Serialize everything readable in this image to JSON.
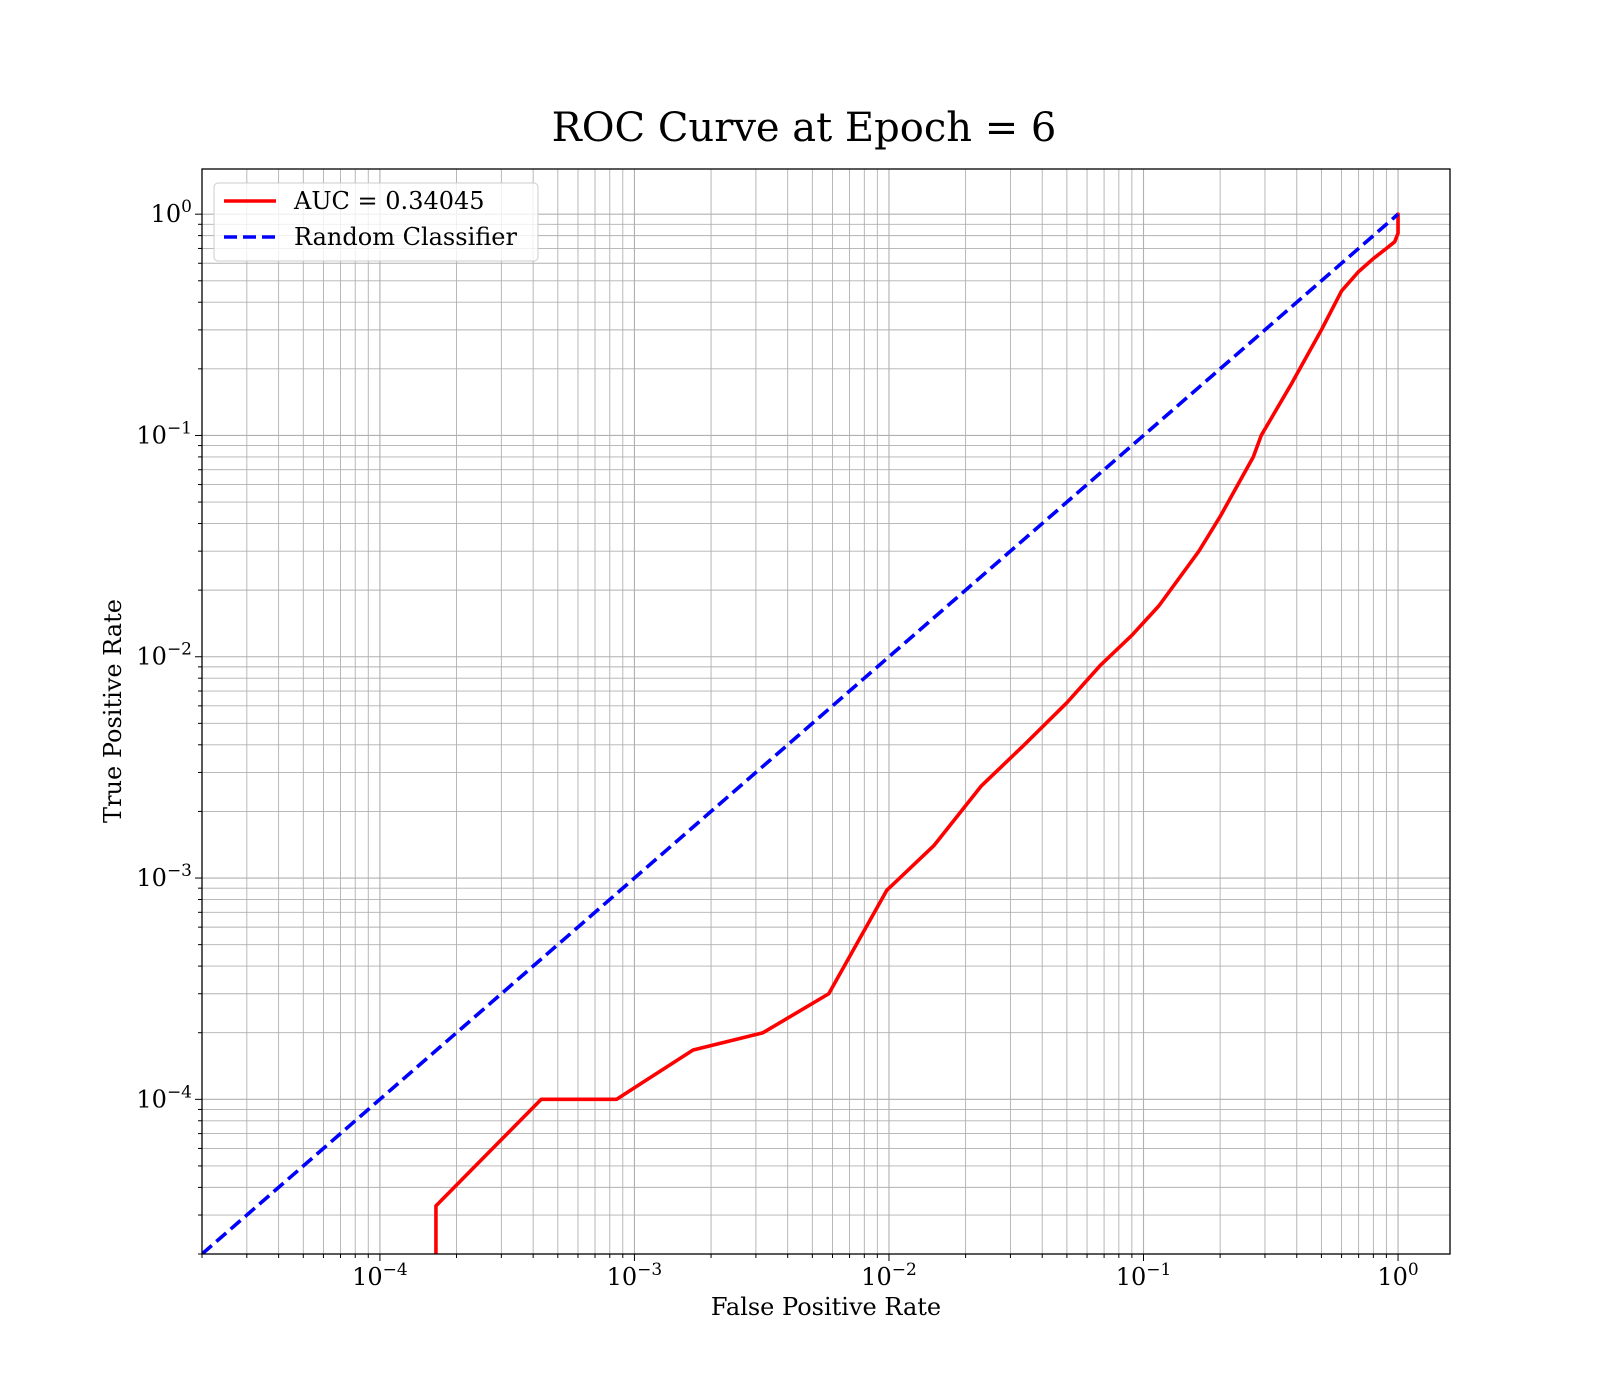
{
  "chart_data": {
    "type": "line",
    "title": "ROC Curve at Epoch = 6",
    "xlabel": "False Positive Rate",
    "ylabel": "True Positive Rate",
    "xscale": "log",
    "yscale": "log",
    "xlim": [
      2e-05,
      1.6
    ],
    "ylim": [
      2e-05,
      1.6
    ],
    "grid": true,
    "grid_minor": true,
    "legend_position": "upper-left",
    "x_ticks": [
      {
        "value": 0.0001,
        "base": "10",
        "exp": "−4"
      },
      {
        "value": 0.001,
        "base": "10",
        "exp": "−3"
      },
      {
        "value": 0.01,
        "base": "10",
        "exp": "−2"
      },
      {
        "value": 0.1,
        "base": "10",
        "exp": "−1"
      },
      {
        "value": 1,
        "base": "10",
        "exp": "0"
      }
    ],
    "y_ticks": [
      {
        "value": 0.0001,
        "base": "10",
        "exp": "−4"
      },
      {
        "value": 0.001,
        "base": "10",
        "exp": "−3"
      },
      {
        "value": 0.01,
        "base": "10",
        "exp": "−2"
      },
      {
        "value": 0.1,
        "base": "10",
        "exp": "−1"
      },
      {
        "value": 1,
        "base": "10",
        "exp": "0"
      }
    ],
    "series": [
      {
        "name": "AUC = 0.34045",
        "color": "#ff0000",
        "style": "solid",
        "x": [
          0.000166,
          0.000166,
          0.00043,
          0.00085,
          0.0017,
          0.0032,
          0.0058,
          0.0098,
          0.015,
          0.023,
          0.034,
          0.05,
          0.068,
          0.09,
          0.115,
          0.165,
          0.2,
          0.27,
          0.29,
          0.38,
          0.5,
          0.6,
          0.7,
          0.8,
          0.9,
          0.97,
          1.0,
          1.0
        ],
        "y": [
          2e-05,
          3.3e-05,
          0.0001,
          0.0001,
          0.000167,
          0.0002,
          0.0003,
          0.00088,
          0.0014,
          0.0026,
          0.004,
          0.0062,
          0.0092,
          0.0125,
          0.017,
          0.03,
          0.043,
          0.08,
          0.1,
          0.17,
          0.3,
          0.45,
          0.55,
          0.63,
          0.7,
          0.75,
          0.82,
          1.0
        ]
      },
      {
        "name": "Random Classifier",
        "color": "#0000ff",
        "style": "dashed",
        "x": [
          2e-05,
          1.0
        ],
        "y": [
          2e-05,
          1.0
        ]
      }
    ]
  }
}
